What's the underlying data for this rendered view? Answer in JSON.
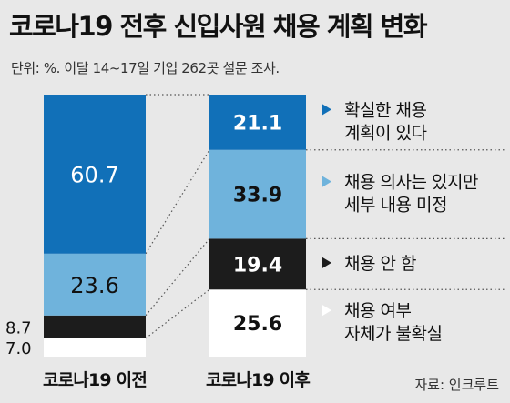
{
  "title": "코로나19 전후 신입사원 채용 계획 변화",
  "subtitle": "단위: %. 이달 14~17일 기업 262곳 설문 조사.",
  "source": "자료: 인크루트",
  "colors": {
    "definite": "#1170b8",
    "undecided_details": "#6fb3dc",
    "no_hiring": "#1c1c1c",
    "uncertain": "#ffffff",
    "background": "#e8e8e8"
  },
  "chart_data": {
    "type": "bar",
    "stacked": true,
    "categories": [
      "코로나19 이전",
      "코로나19 이후"
    ],
    "series": [
      {
        "name": "채용 여부 자체가 불확실",
        "legend_lines": [
          "채용 여부",
          "자체가 불확실"
        ],
        "color": "#ffffff",
        "values": [
          7.0,
          25.6
        ]
      },
      {
        "name": "채용 안 함",
        "legend_lines": [
          "채용 안 함"
        ],
        "color": "#1c1c1c",
        "values": [
          8.7,
          19.4
        ]
      },
      {
        "name": "채용 의사는 있지만 세부 내용 미정",
        "legend_lines": [
          "채용 의사는 있지만",
          "세부 내용 미정"
        ],
        "color": "#6fb3dc",
        "values": [
          23.6,
          33.9
        ]
      },
      {
        "name": "확실한 채용 계획이 있다",
        "legend_lines": [
          "확실한 채용",
          "계획이 있다"
        ],
        "color": "#1170b8",
        "values": [
          60.7,
          21.1
        ]
      }
    ],
    "labels_before": [
      "7.0",
      "8.7",
      "23.6",
      "60.7"
    ],
    "labels_after": [
      "25.6",
      "19.4",
      "33.9",
      "21.1"
    ],
    "ylim": [
      0,
      100
    ]
  }
}
